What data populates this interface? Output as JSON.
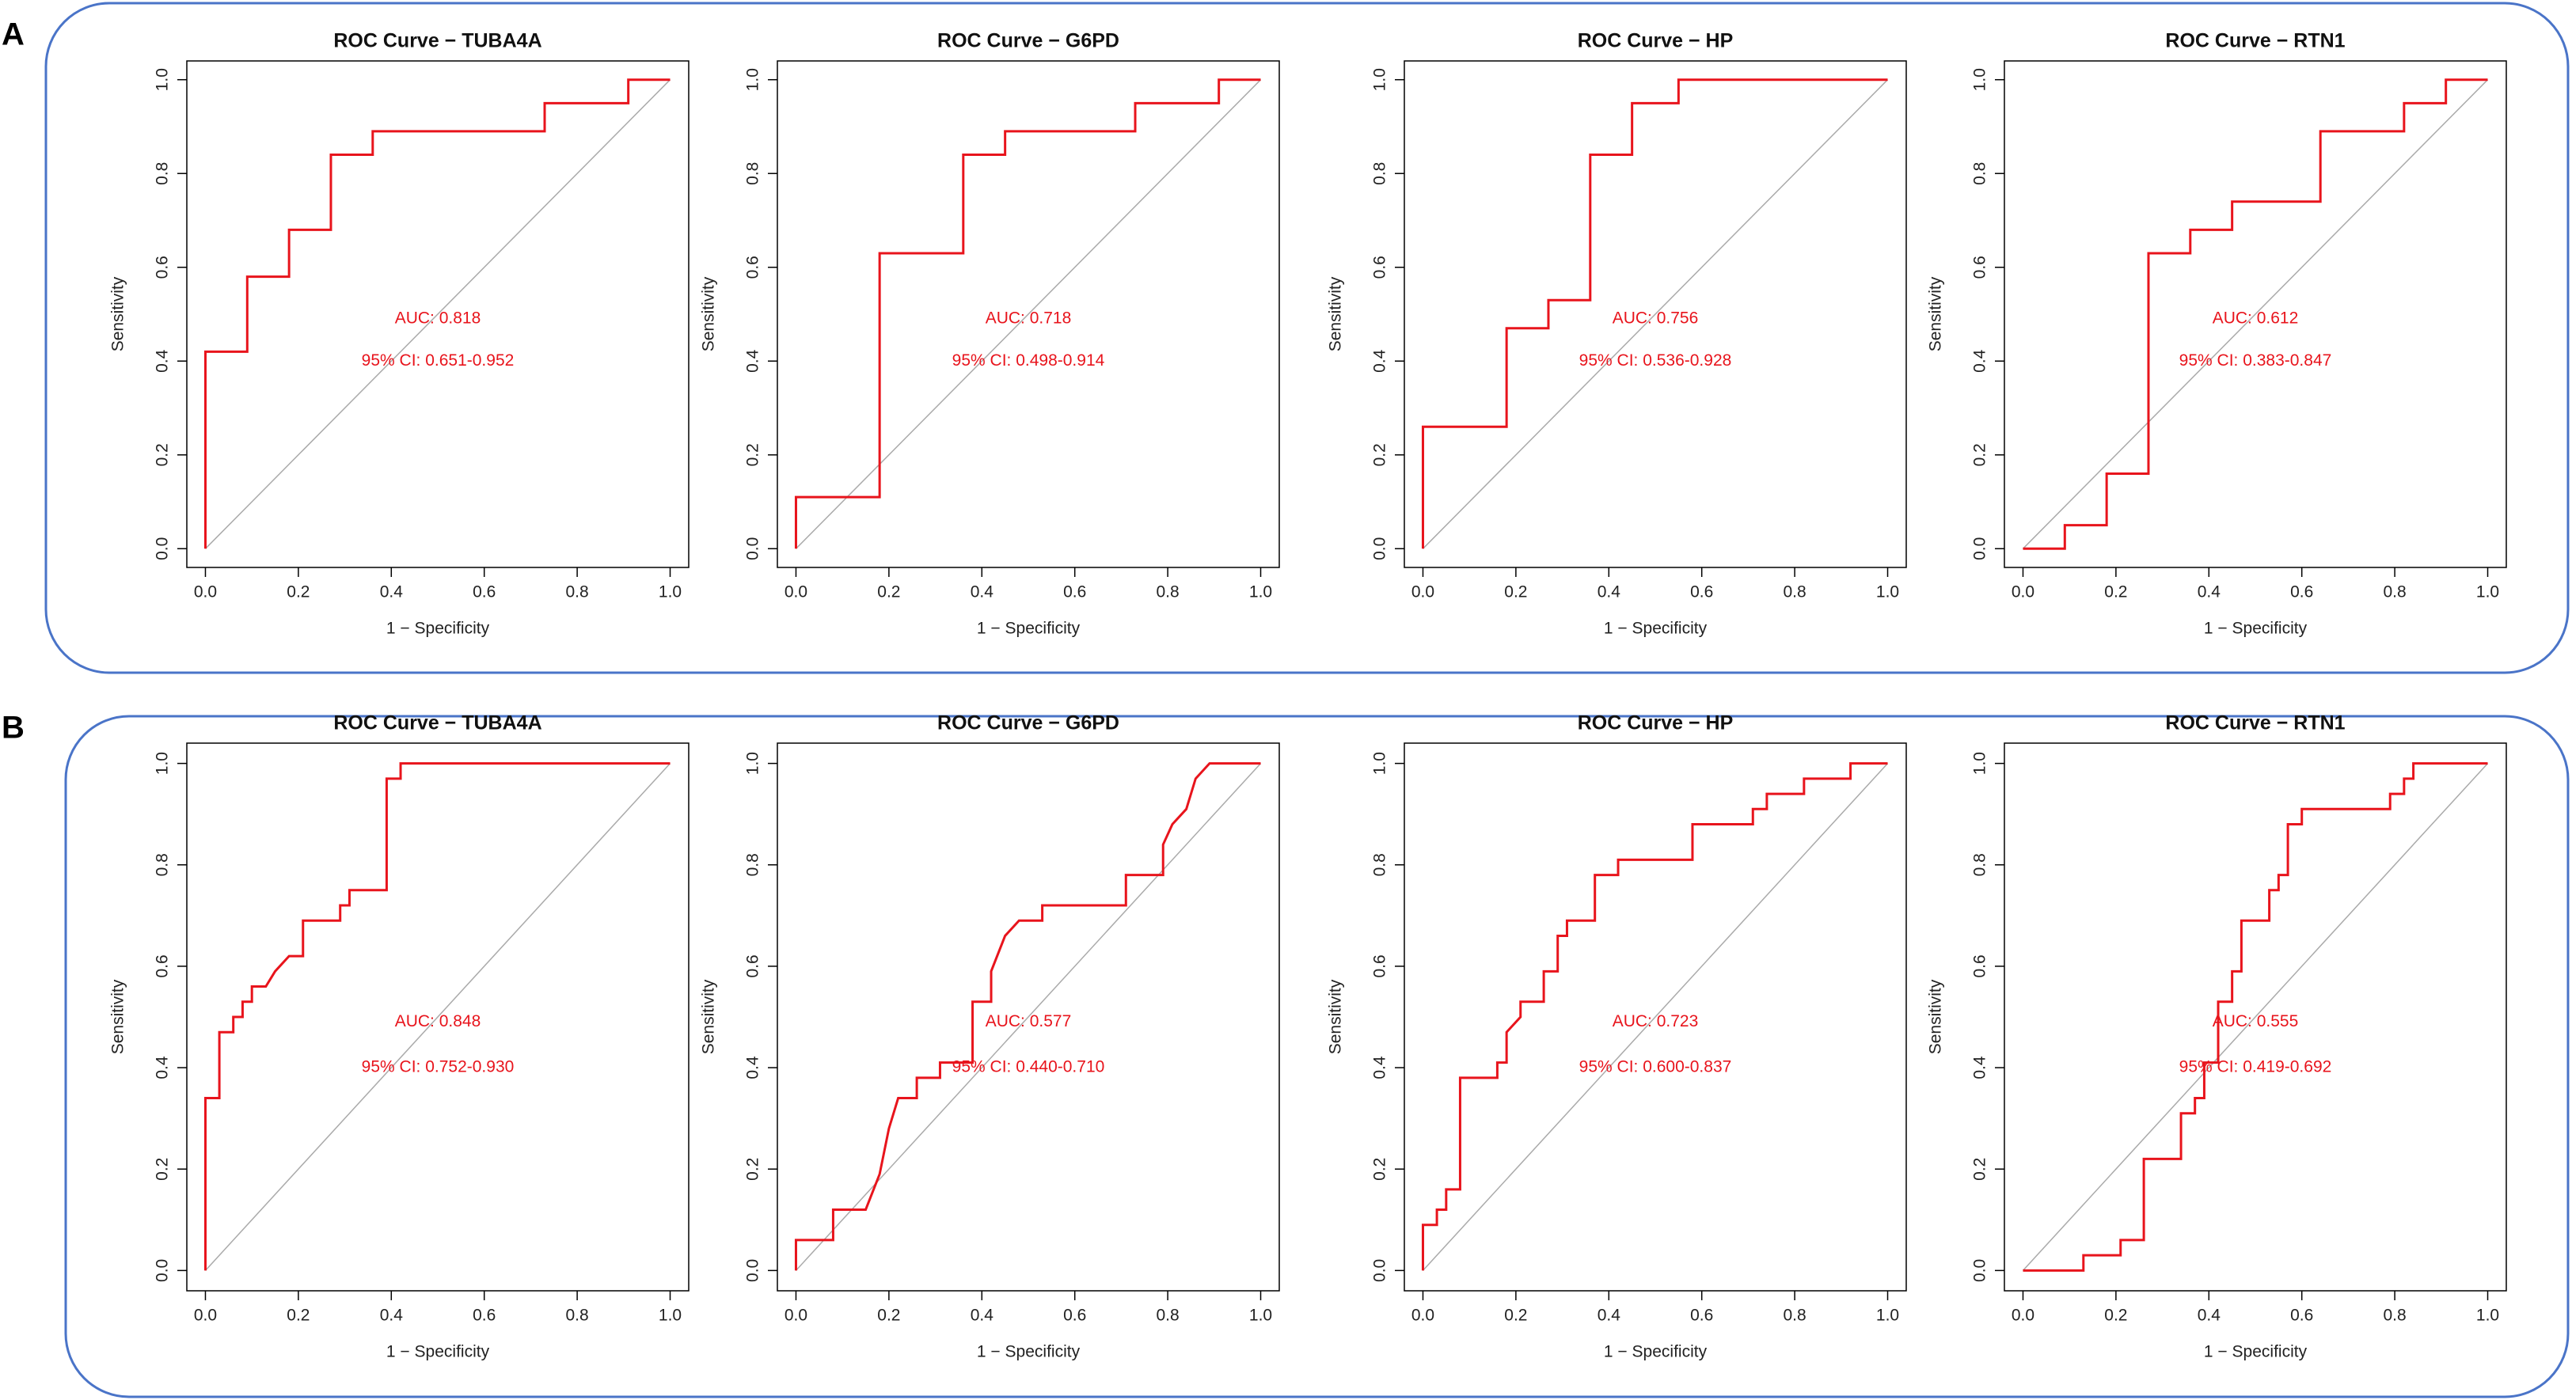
{
  "panel_labels": [
    "A",
    "B"
  ],
  "chart_data": [
    {
      "type": "line",
      "title": "ROC Curve − TUBA4A",
      "xlabel": "1 − Specificity",
      "ylabel": "Sensitivity",
      "annotations": [
        "AUC: 0.818",
        "95% CI: 0.651-0.952"
      ],
      "color": "#e8141c",
      "x": [
        0,
        0,
        0.09,
        0.09,
        0.18,
        0.18,
        0.27,
        0.27,
        0.36,
        0.36,
        0.73,
        0.73,
        0.91,
        0.91,
        1
      ],
      "values": [
        0,
        0.42,
        0.42,
        0.58,
        0.58,
        0.68,
        0.68,
        0.84,
        0.84,
        0.89,
        0.89,
        0.95,
        0.95,
        1,
        1
      ],
      "xlim": [
        -0.04,
        1.04
      ],
      "ylim": [
        -0.04,
        1.04
      ],
      "xticks": [
        {
          "value": 0,
          "label": "0.0"
        },
        0.2,
        0.4,
        0.6,
        0.8,
        {
          "value": 1,
          "label": "1.0"
        }
      ],
      "yticks": [
        {
          "value": 0,
          "label": "0.0"
        },
        0.2,
        0.4,
        0.6,
        0.8,
        {
          "value": 1,
          "label": "1.0"
        }
      ]
    },
    {
      "type": "line",
      "title": "ROC Curve − G6PD",
      "xlabel": "1 − Specificity",
      "ylabel": "Sensitivity",
      "annotations": [
        "AUC: 0.718",
        "95% CI: 0.498-0.914"
      ],
      "color": "#e8141c",
      "x": [
        0,
        0,
        0.18,
        0.18,
        0.36,
        0.36,
        0.45,
        0.45,
        0.73,
        0.73,
        0.91,
        0.91,
        1
      ],
      "values": [
        0,
        0.11,
        0.11,
        0.63,
        0.63,
        0.84,
        0.84,
        0.89,
        0.89,
        0.95,
        0.95,
        1,
        1
      ],
      "xlim": [
        -0.04,
        1.04
      ],
      "ylim": [
        -0.04,
        1.04
      ],
      "xticks": [
        {
          "value": 0,
          "label": "0.0"
        },
        0.2,
        0.4,
        0.6,
        0.8,
        {
          "value": 1,
          "label": "1.0"
        }
      ],
      "yticks": [
        {
          "value": 0,
          "label": "0.0"
        },
        0.2,
        0.4,
        0.6,
        0.8,
        {
          "value": 1,
          "label": "1.0"
        }
      ]
    },
    {
      "type": "line",
      "title": "ROC Curve − HP",
      "xlabel": "1 − Specificity",
      "ylabel": "Sensitivity",
      "annotations": [
        "AUC: 0.756",
        "95% CI: 0.536-0.928"
      ],
      "color": "#e8141c",
      "x": [
        0,
        0,
        0.18,
        0.18,
        0.27,
        0.27,
        0.36,
        0.36,
        0.45,
        0.45,
        0.55,
        0.55,
        1
      ],
      "values": [
        0,
        0.26,
        0.26,
        0.47,
        0.47,
        0.53,
        0.53,
        0.84,
        0.84,
        0.95,
        0.95,
        1,
        1
      ],
      "xlim": [
        -0.04,
        1.04
      ],
      "ylim": [
        -0.04,
        1.04
      ],
      "xticks": [
        {
          "value": 0,
          "label": "0.0"
        },
        0.2,
        0.4,
        0.6,
        0.8,
        {
          "value": 1,
          "label": "1.0"
        }
      ],
      "yticks": [
        {
          "value": 0,
          "label": "0.0"
        },
        0.2,
        0.4,
        0.6,
        0.8,
        {
          "value": 1,
          "label": "1.0"
        }
      ]
    },
    {
      "type": "line",
      "title": "ROC Curve − RTN1",
      "xlabel": "1 − Specificity",
      "ylabel": "Sensitivity",
      "annotations": [
        "AUC: 0.612",
        "95% CI: 0.383-0.847"
      ],
      "color": "#e8141c",
      "x": [
        0,
        0.09,
        0.09,
        0.18,
        0.18,
        0.27,
        0.27,
        0.36,
        0.36,
        0.45,
        0.45,
        0.64,
        0.64,
        0.82,
        0.82,
        0.91,
        0.91,
        1
      ],
      "values": [
        0,
        0,
        0.05,
        0.05,
        0.16,
        0.16,
        0.63,
        0.63,
        0.68,
        0.68,
        0.74,
        0.74,
        0.89,
        0.89,
        0.95,
        0.95,
        1,
        1
      ],
      "xlim": [
        -0.04,
        1.04
      ],
      "ylim": [
        -0.04,
        1.04
      ],
      "xticks": [
        {
          "value": 0,
          "label": "0.0"
        },
        0.2,
        0.4,
        0.6,
        0.8,
        {
          "value": 1,
          "label": "1.0"
        }
      ],
      "yticks": [
        {
          "value": 0,
          "label": "0.0"
        },
        0.2,
        0.4,
        0.6,
        0.8,
        {
          "value": 1,
          "label": "1.0"
        }
      ]
    },
    {
      "type": "line",
      "title": "ROC Curve − TUBA4A",
      "xlabel": "1 − Specificity",
      "ylabel": "Sensitivity",
      "annotations": [
        "AUC: 0.848",
        "95% CI: 0.752-0.930"
      ],
      "color": "#e8141c",
      "x": [
        0,
        0,
        0.03,
        0.03,
        0.06,
        0.06,
        0.08,
        0.08,
        0.1,
        0.1,
        0.13,
        0.15,
        0.18,
        0.21,
        0.21,
        0.29,
        0.29,
        0.31,
        0.31,
        0.39,
        0.39,
        0.42,
        0.42,
        1
      ],
      "values": [
        0,
        0.34,
        0.34,
        0.47,
        0.47,
        0.5,
        0.5,
        0.53,
        0.53,
        0.56,
        0.56,
        0.59,
        0.62,
        0.62,
        0.69,
        0.69,
        0.72,
        0.72,
        0.75,
        0.75,
        0.97,
        0.97,
        1,
        1
      ],
      "xlim": [
        -0.04,
        1.04
      ],
      "ylim": [
        -0.04,
        1.04
      ],
      "xticks": [
        {
          "value": 0,
          "label": "0.0"
        },
        0.2,
        0.4,
        0.6,
        0.8,
        {
          "value": 1,
          "label": "1.0"
        }
      ],
      "yticks": [
        {
          "value": 0,
          "label": "0.0"
        },
        0.2,
        0.4,
        0.6,
        0.8,
        {
          "value": 1,
          "label": "1.0"
        }
      ]
    },
    {
      "type": "line",
      "title": "ROC Curve − G6PD",
      "xlabel": "1 − Specificity",
      "ylabel": "Sensitivity",
      "annotations": [
        "AUC: 0.577",
        "95% CI: 0.440-0.710"
      ],
      "color": "#e8141c",
      "x": [
        0,
        0,
        0.08,
        0.08,
        0.15,
        0.18,
        0.2,
        0.22,
        0.26,
        0.26,
        0.31,
        0.31,
        0.38,
        0.38,
        0.42,
        0.42,
        0.45,
        0.48,
        0.53,
        0.53,
        0.71,
        0.71,
        0.79,
        0.79,
        0.81,
        0.84,
        0.86,
        0.89,
        1
      ],
      "values": [
        0,
        0.06,
        0.06,
        0.12,
        0.12,
        0.19,
        0.28,
        0.34,
        0.34,
        0.38,
        0.38,
        0.41,
        0.41,
        0.53,
        0.53,
        0.59,
        0.66,
        0.69,
        0.69,
        0.72,
        0.72,
        0.78,
        0.78,
        0.84,
        0.88,
        0.91,
        0.97,
        1,
        1
      ],
      "xlim": [
        -0.04,
        1.04
      ],
      "ylim": [
        -0.04,
        1.04
      ],
      "xticks": [
        {
          "value": 0,
          "label": "0.0"
        },
        0.2,
        0.4,
        0.6,
        0.8,
        {
          "value": 1,
          "label": "1.0"
        }
      ],
      "yticks": [
        {
          "value": 0,
          "label": "0.0"
        },
        0.2,
        0.4,
        0.6,
        0.8,
        {
          "value": 1,
          "label": "1.0"
        }
      ]
    },
    {
      "type": "line",
      "title": "ROC Curve − HP",
      "xlabel": "1 − Specificity",
      "ylabel": "Sensitivity",
      "annotations": [
        "AUC: 0.723",
        "95% CI: 0.600-0.837"
      ],
      "color": "#e8141c",
      "x": [
        0,
        0,
        0.03,
        0.03,
        0.05,
        0.05,
        0.08,
        0.08,
        0.16,
        0.16,
        0.18,
        0.18,
        0.21,
        0.21,
        0.26,
        0.26,
        0.29,
        0.29,
        0.31,
        0.31,
        0.37,
        0.37,
        0.42,
        0.42,
        0.58,
        0.58,
        0.71,
        0.71,
        0.74,
        0.74,
        0.82,
        0.82,
        0.92,
        0.92,
        1
      ],
      "values": [
        0,
        0.09,
        0.09,
        0.12,
        0.12,
        0.16,
        0.16,
        0.38,
        0.38,
        0.41,
        0.41,
        0.47,
        0.5,
        0.53,
        0.53,
        0.59,
        0.59,
        0.66,
        0.66,
        0.69,
        0.69,
        0.78,
        0.78,
        0.81,
        0.81,
        0.88,
        0.88,
        0.91,
        0.91,
        0.94,
        0.94,
        0.97,
        0.97,
        1,
        1
      ],
      "xlim": [
        -0.04,
        1.04
      ],
      "ylim": [
        -0.04,
        1.04
      ],
      "xticks": [
        {
          "value": 0,
          "label": "0.0"
        },
        0.2,
        0.4,
        0.6,
        0.8,
        {
          "value": 1,
          "label": "1.0"
        }
      ],
      "yticks": [
        {
          "value": 0,
          "label": "0.0"
        },
        0.2,
        0.4,
        0.6,
        0.8,
        {
          "value": 1,
          "label": "1.0"
        }
      ]
    },
    {
      "type": "line",
      "title": "ROC Curve − RTN1",
      "xlabel": "1 − Specificity",
      "ylabel": "Sensitivity",
      "annotations": [
        "AUC: 0.555",
        "95% CI: 0.419-0.692"
      ],
      "color": "#e8141c",
      "x": [
        0,
        0.13,
        0.13,
        0.21,
        0.21,
        0.26,
        0.26,
        0.34,
        0.34,
        0.37,
        0.37,
        0.39,
        0.39,
        0.42,
        0.42,
        0.45,
        0.45,
        0.47,
        0.47,
        0.53,
        0.53,
        0.55,
        0.55,
        0.57,
        0.57,
        0.6,
        0.6,
        0.79,
        0.79,
        0.82,
        0.82,
        0.84,
        0.84,
        1
      ],
      "values": [
        0,
        0,
        0.03,
        0.03,
        0.06,
        0.06,
        0.22,
        0.22,
        0.31,
        0.31,
        0.34,
        0.34,
        0.41,
        0.41,
        0.53,
        0.53,
        0.59,
        0.59,
        0.69,
        0.69,
        0.75,
        0.75,
        0.78,
        0.78,
        0.88,
        0.88,
        0.91,
        0.91,
        0.94,
        0.94,
        0.97,
        0.97,
        1,
        1
      ],
      "xlim": [
        -0.04,
        1.04
      ],
      "ylim": [
        -0.04,
        1.04
      ],
      "xticks": [
        {
          "value": 0,
          "label": "0.0"
        },
        0.2,
        0.4,
        0.6,
        0.8,
        {
          "value": 1,
          "label": "1.0"
        }
      ],
      "yticks": [
        {
          "value": 0,
          "label": "0.0"
        },
        0.2,
        0.4,
        0.6,
        0.8,
        {
          "value": 1,
          "label": "1.0"
        }
      ]
    }
  ]
}
